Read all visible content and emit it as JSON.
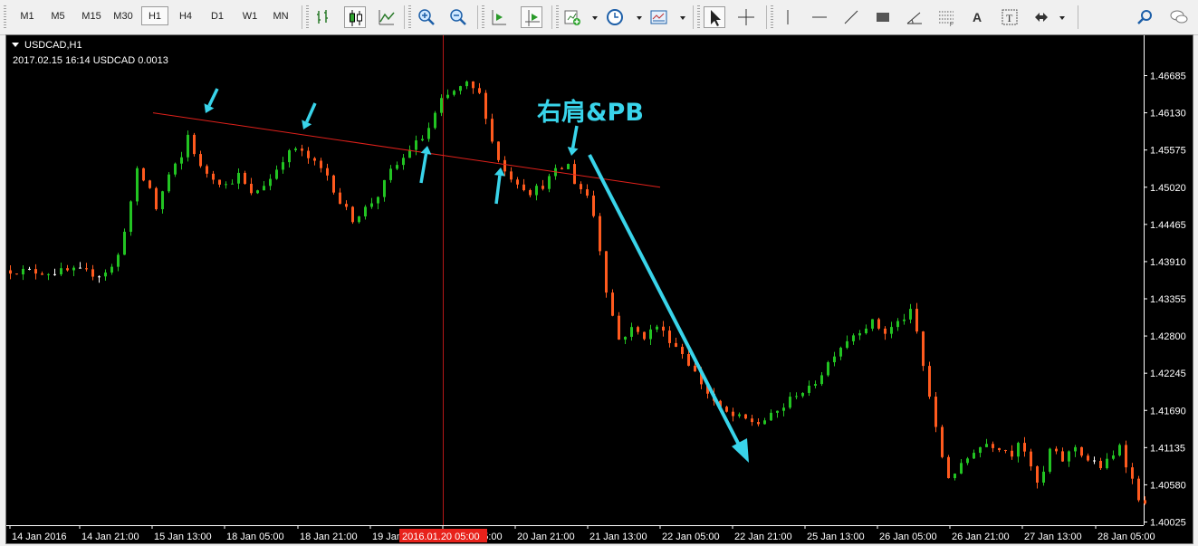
{
  "toolbar": {
    "timeframes": [
      {
        "label": "M1",
        "active": false
      },
      {
        "label": "M5",
        "active": false
      },
      {
        "label": "M15",
        "active": false
      },
      {
        "label": "M30",
        "active": false
      },
      {
        "label": "H1",
        "active": true
      },
      {
        "label": "H4",
        "active": false
      },
      {
        "label": "D1",
        "active": false
      },
      {
        "label": "W1",
        "active": false
      },
      {
        "label": "MN",
        "active": false
      }
    ],
    "icons": [
      "bar-chart-icon",
      "candlestick-chart-icon",
      "line-chart-icon",
      "zoom-in-icon",
      "zoom-out-icon",
      "chart-shift-icon",
      "auto-scroll-icon",
      "new-chart-icon",
      "periods-clock-icon",
      "templates-icon",
      "cursor-arrow-icon",
      "crosshair-icon",
      "vertical-line-icon",
      "horizontal-line-icon",
      "trendline-icon",
      "rectangle-icon",
      "angle-line-icon",
      "fibonacci-icon",
      "text-icon",
      "text-label-icon",
      "arrows-icon",
      "search-icon",
      "chat-icon"
    ]
  },
  "chart": {
    "symbol_label": "USDCAD,H1",
    "info_line": "2017.02.15 16:14 USDCAD 0.0013",
    "annotation": "右肩&PB",
    "crosshair_time_label": "2016.01.20 05:00",
    "colors": {
      "background": "#000000",
      "bull": "#22c322",
      "bear": "#ff5a1e",
      "doji": "#ffffff",
      "trendline": "#e0211b",
      "crosshair": "#b41818",
      "annotation": "#39d4ea",
      "axis_text": "#ffffff"
    }
  },
  "chart_data": {
    "type": "candlestick",
    "symbol": "USDCAD",
    "timeframe": "H1",
    "price_ticks": [
      "1.46685",
      "1.46130",
      "1.45575",
      "1.45020",
      "1.44465",
      "1.43910",
      "1.43355",
      "1.42800",
      "1.42245",
      "1.41690",
      "1.41135",
      "1.40580",
      "1.40025"
    ],
    "price_range": [
      1.40025,
      1.46685
    ],
    "time_ticks": [
      "14 Jan 2016",
      "14 Jan 21:00",
      "15 Jan 13:00",
      "18 Jan 05:00",
      "18 Jan 21:00",
      "19 Jan 13:00",
      "20 Jan 05:00",
      "20 Jan 21:00",
      "21 Jan 13:00",
      "22 Jan 05:00",
      "22 Jan 21:00",
      "25 Jan 13:00",
      "26 Jan 05:00",
      "26 Jan 21:00",
      "27 Jan 13:00",
      "28 Jan 05:00"
    ],
    "price_path": [
      [
        0,
        1.4378
      ],
      [
        6,
        1.4375
      ],
      [
        10,
        1.4377
      ],
      [
        14,
        1.4372
      ],
      [
        16,
        1.4382
      ],
      [
        17,
        1.44
      ],
      [
        18,
        1.444
      ],
      [
        19,
        1.448
      ],
      [
        20,
        1.4525
      ],
      [
        22,
        1.45
      ],
      [
        23,
        1.447
      ],
      [
        25,
        1.452
      ],
      [
        27,
        1.4545
      ],
      [
        28,
        1.458
      ],
      [
        30,
        1.453
      ],
      [
        34,
        1.4505
      ],
      [
        36,
        1.452
      ],
      [
        38,
        1.449
      ],
      [
        41,
        1.4515
      ],
      [
        43,
        1.4545
      ],
      [
        45,
        1.456
      ],
      [
        47,
        1.4545
      ],
      [
        50,
        1.452
      ],
      [
        52,
        1.448
      ],
      [
        54,
        1.4455
      ],
      [
        56,
        1.447
      ],
      [
        58,
        1.449
      ],
      [
        60,
        1.4525
      ],
      [
        62,
        1.4545
      ],
      [
        63,
        1.456
      ],
      [
        65,
        1.4575
      ],
      [
        66,
        1.459
      ],
      [
        68,
        1.463
      ],
      [
        70,
        1.4645
      ],
      [
        72,
        1.4655
      ],
      [
        74,
        1.464
      ],
      [
        75,
        1.461
      ],
      [
        76,
        1.457
      ],
      [
        77,
        1.4545
      ],
      [
        78,
        1.4525
      ],
      [
        80,
        1.451
      ],
      [
        82,
        1.4495
      ],
      [
        84,
        1.4505
      ],
      [
        86,
        1.4525
      ],
      [
        88,
        1.4535
      ],
      [
        89,
        1.451
      ],
      [
        91,
        1.449
      ],
      [
        92,
        1.446
      ],
      [
        93,
        1.441
      ],
      [
        94,
        1.435
      ],
      [
        95,
        1.431
      ],
      [
        96,
        1.4275
      ],
      [
        98,
        1.429
      ],
      [
        100,
        1.428
      ],
      [
        102,
        1.4295
      ],
      [
        104,
        1.4275
      ],
      [
        106,
        1.4255
      ],
      [
        108,
        1.4225
      ],
      [
        110,
        1.4195
      ],
      [
        112,
        1.417
      ],
      [
        114,
        1.416
      ],
      [
        116,
        1.4155
      ],
      [
        118,
        1.415
      ],
      [
        120,
        1.416
      ],
      [
        122,
        1.4175
      ],
      [
        124,
        1.4195
      ],
      [
        126,
        1.42
      ],
      [
        128,
        1.4225
      ],
      [
        130,
        1.4255
      ],
      [
        132,
        1.4275
      ],
      [
        134,
        1.429
      ],
      [
        136,
        1.43
      ],
      [
        138,
        1.4285
      ],
      [
        140,
        1.43
      ],
      [
        142,
        1.4315
      ],
      [
        143,
        1.4285
      ],
      [
        144,
        1.4235
      ],
      [
        145,
        1.419
      ],
      [
        146,
        1.414
      ],
      [
        147,
        1.41
      ],
      [
        148,
        1.407
      ],
      [
        150,
        1.4085
      ],
      [
        152,
        1.411
      ],
      [
        154,
        1.412
      ],
      [
        156,
        1.4115
      ],
      [
        158,
        1.4105
      ],
      [
        159,
        1.4125
      ],
      [
        160,
        1.411
      ],
      [
        161,
        1.408
      ],
      [
        162,
        1.406
      ],
      [
        163,
        1.4075
      ],
      [
        164,
        1.411
      ],
      [
        166,
        1.4095
      ],
      [
        168,
        1.4115
      ],
      [
        170,
        1.4095
      ],
      [
        172,
        1.4085
      ],
      [
        174,
        1.41
      ],
      [
        175,
        1.412
      ],
      [
        176,
        1.409
      ],
      [
        177,
        1.4065
      ],
      [
        178,
        1.404
      ],
      [
        179,
        1.4025
      ]
    ],
    "bar_count": 180,
    "annotations": {
      "text": "右肩&PB",
      "neckline_from": {
        "time": "15 Jan 13:00",
        "price": 1.4613
      },
      "neckline_to": {
        "time": "22 Jan 05:00",
        "price": 1.4502
      }
    }
  }
}
